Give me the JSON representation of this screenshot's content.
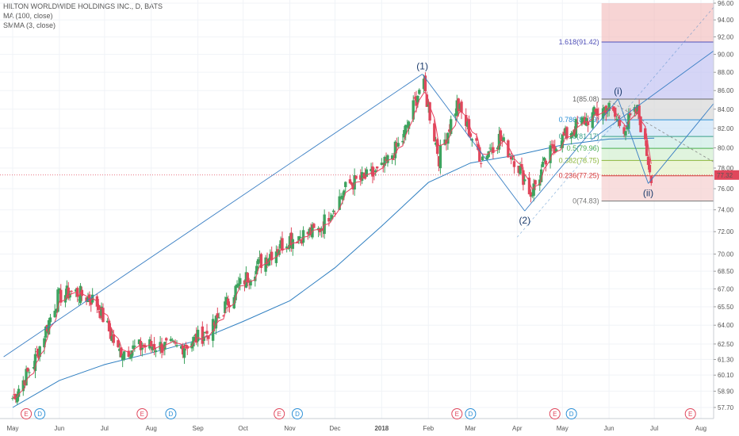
{
  "header": {
    "title": "HILTON WORLDWIDE HOLDINGS INC., D, BATS",
    "indicator1": "MA (100, close)",
    "indicator2": "SMMA (3, close)"
  },
  "chart_data": {
    "type": "candlestick",
    "title": "HILTON WORLDWIDE HOLDINGS INC., D, BATS",
    "ylim": [
      57.7,
      96.0
    ],
    "y_scale": "log",
    "y_ticks": [
      "96.00",
      "94.00",
      "92.00",
      "90.00",
      "88.00",
      "86.00",
      "84.00",
      "82.00",
      "80.00",
      "78.00",
      "76.00",
      "74.00",
      "72.00",
      "70.00",
      "68.50",
      "67.00",
      "65.50",
      "64.00",
      "62.50",
      "61.30",
      "60.10",
      "58.90",
      "57.70"
    ],
    "x_labels": [
      "May",
      "Jun",
      "Jul",
      "Aug",
      "Sep",
      "Oct",
      "Nov",
      "Dec",
      "2018",
      "Feb",
      "Mar",
      "Apr",
      "May",
      "Jun",
      "Jul",
      "Aug"
    ],
    "last_price": "77.32",
    "series": [
      {
        "name": "MA (100, close)",
        "points": [
          [
            "2017-05-01",
            57.7
          ],
          [
            "2017-06-01",
            59.7
          ],
          [
            "2017-07-01",
            60.9
          ],
          [
            "2017-08-01",
            61.8
          ],
          [
            "2017-09-01",
            62.8
          ],
          [
            "2017-10-01",
            64.3
          ],
          [
            "2017-11-01",
            66.0
          ],
          [
            "2017-12-01",
            68.8
          ],
          [
            "2018-01-01",
            72.5
          ],
          [
            "2018-02-01",
            76.6
          ],
          [
            "2018-03-01",
            78.5
          ],
          [
            "2018-04-01",
            79.3
          ],
          [
            "2018-05-01",
            80.3
          ],
          [
            "2018-06-01",
            80.9
          ],
          [
            "2018-07-01",
            81.0
          ]
        ]
      }
    ],
    "price_path": [
      [
        "2017-05-01",
        58.4
      ],
      [
        "2017-05-15",
        61.0
      ],
      [
        "2017-05-31",
        66.3
      ],
      [
        "2017-06-10",
        66.8
      ],
      [
        "2017-06-25",
        66.0
      ],
      [
        "2017-07-10",
        61.9
      ],
      [
        "2017-07-31",
        62.4
      ],
      [
        "2017-08-20",
        62.2
      ],
      [
        "2017-09-10",
        63.6
      ],
      [
        "2017-09-25",
        66.8
      ],
      [
        "2017-10-15",
        69.6
      ],
      [
        "2017-11-01",
        71.4
      ],
      [
        "2017-11-20",
        72.1
      ],
      [
        "2017-12-10",
        76.4
      ],
      [
        "2017-12-31",
        77.6
      ],
      [
        "2018-01-15",
        80.9
      ],
      [
        "2018-01-28",
        87.1
      ],
      [
        "2018-02-08",
        79.0
      ],
      [
        "2018-02-20",
        84.5
      ],
      [
        "2018-03-08",
        79.0
      ],
      [
        "2018-03-20",
        81.0
      ],
      [
        "2018-04-01",
        78.5
      ],
      [
        "2018-04-10",
        75.5
      ],
      [
        "2018-04-25",
        80.1
      ],
      [
        "2018-05-10",
        82.2
      ],
      [
        "2018-05-31",
        84.3
      ],
      [
        "2018-06-10",
        82.0
      ],
      [
        "2018-06-20",
        83.8
      ],
      [
        "2018-06-29",
        77.3
      ]
    ],
    "elliott_waves": [
      {
        "label": "(1)",
        "date": "2018-01-28",
        "price": 87.79
      },
      {
        "label": "(2)",
        "date": "2018-04-06",
        "price": 73.9
      },
      {
        "label": "(i)",
        "date": "2018-06-07",
        "price": 85.08
      },
      {
        "label": "(ii)",
        "date": "2018-06-27",
        "price": 76.5
      }
    ],
    "fibonacci": [
      {
        "label": "1.618(91.42)",
        "price": 91.42,
        "color": "#5050b8"
      },
      {
        "label": "1(85.08)",
        "price": 85.08,
        "color": "#666666"
      },
      {
        "label": "0.786(82.89)",
        "price": 82.89,
        "color": "#2b8fd6"
      },
      {
        "label": "0.618(81.17)",
        "price": 81.17,
        "color": "#3aa08a"
      },
      {
        "label": "0.5(79.96)",
        "price": 79.96,
        "color": "#4caf50"
      },
      {
        "label": "0.382(78.75)",
        "price": 78.75,
        "color": "#8cb63c"
      },
      {
        "label": "0.236(77.25)",
        "price": 77.25,
        "color": "#d33b3b"
      },
      {
        "label": "0(74.83)",
        "price": 74.83,
        "color": "#777777"
      }
    ],
    "events": [
      {
        "type": "E",
        "date": "2017-05-10"
      },
      {
        "type": "D",
        "date": "2017-05-19"
      },
      {
        "type": "E",
        "date": "2017-07-26"
      },
      {
        "type": "D",
        "date": "2017-08-14"
      },
      {
        "type": "E",
        "date": "2017-10-25"
      },
      {
        "type": "D",
        "date": "2017-11-06"
      },
      {
        "type": "E",
        "date": "2018-02-20"
      },
      {
        "type": "D",
        "date": "2018-03-01"
      },
      {
        "type": "E",
        "date": "2018-04-26"
      },
      {
        "type": "D",
        "date": "2018-05-07"
      },
      {
        "type": "E",
        "date": "2018-07-25"
      }
    ]
  },
  "colors": {
    "up": "#3ea35f",
    "down": "#e0475c",
    "ma": "#2f7fc1",
    "smma": "#e8415f",
    "trendline": "#3a7fc4",
    "last_price_bg": "#e0475c",
    "fib_top_zone": "#f2b8b8",
    "fib_ext_zone": "#b9b9ef"
  }
}
